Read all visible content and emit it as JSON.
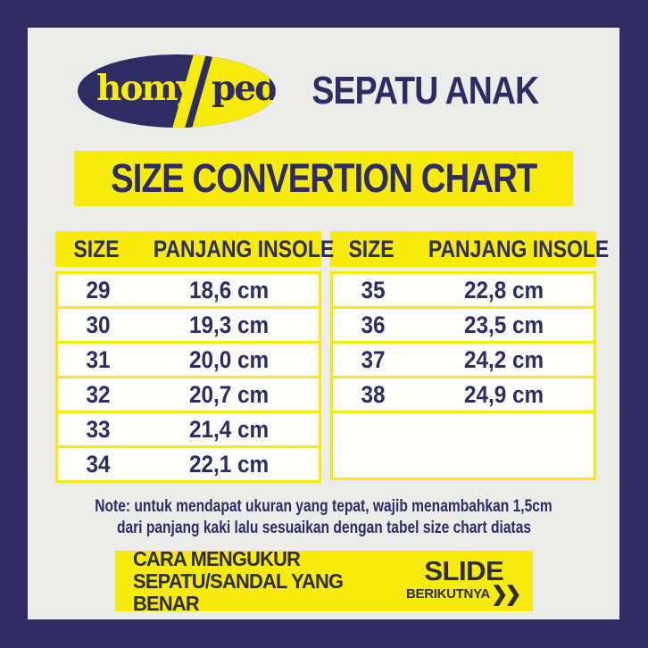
{
  "brand": {
    "logo_left": "homy",
    "logo_right": "ped",
    "title": "SEPATU ANAK"
  },
  "banner": {
    "title": "SIZE CONVERTION CHART"
  },
  "tables": [
    {
      "headers": [
        "SIZE",
        "PANJANG INSOLE"
      ],
      "rows": [
        {
          "size": "29",
          "insole": "18,6 cm"
        },
        {
          "size": "30",
          "insole": "19,3 cm"
        },
        {
          "size": "31",
          "insole": "20,0 cm"
        },
        {
          "size": "32",
          "insole": "20,7 cm"
        },
        {
          "size": "33",
          "insole": "21,4 cm"
        },
        {
          "size": "34",
          "insole": "22,1 cm"
        }
      ]
    },
    {
      "headers": [
        "SIZE",
        "PANJANG INSOLE"
      ],
      "rows": [
        {
          "size": "35",
          "insole": "22,8 cm"
        },
        {
          "size": "36",
          "insole": "23,5 cm"
        },
        {
          "size": "37",
          "insole": "24,2 cm"
        },
        {
          "size": "38",
          "insole": "24,9 cm"
        }
      ]
    }
  ],
  "note": {
    "line1": "Note: untuk mendapat ukuran yang tepat, wajib menambahkan 1,5cm",
    "line2": "dari panjang kaki lalu sesuaikan dengan tabel size chart diatas"
  },
  "footer": {
    "line1": "CARA MENGUKUR",
    "line2": "SEPATU/SANDAL YANG BENAR",
    "slide": "SLIDE",
    "next": "BERIKUTNYA",
    "next_icon": "❯❯"
  },
  "colors": {
    "frame_navy": "#322b63",
    "text_navy": "#2e2c62",
    "yellow": "#f7eb0e",
    "canvas_bg": "#ececea",
    "footer_text": "#2e2d38",
    "row_white": "#fdfdfc"
  }
}
